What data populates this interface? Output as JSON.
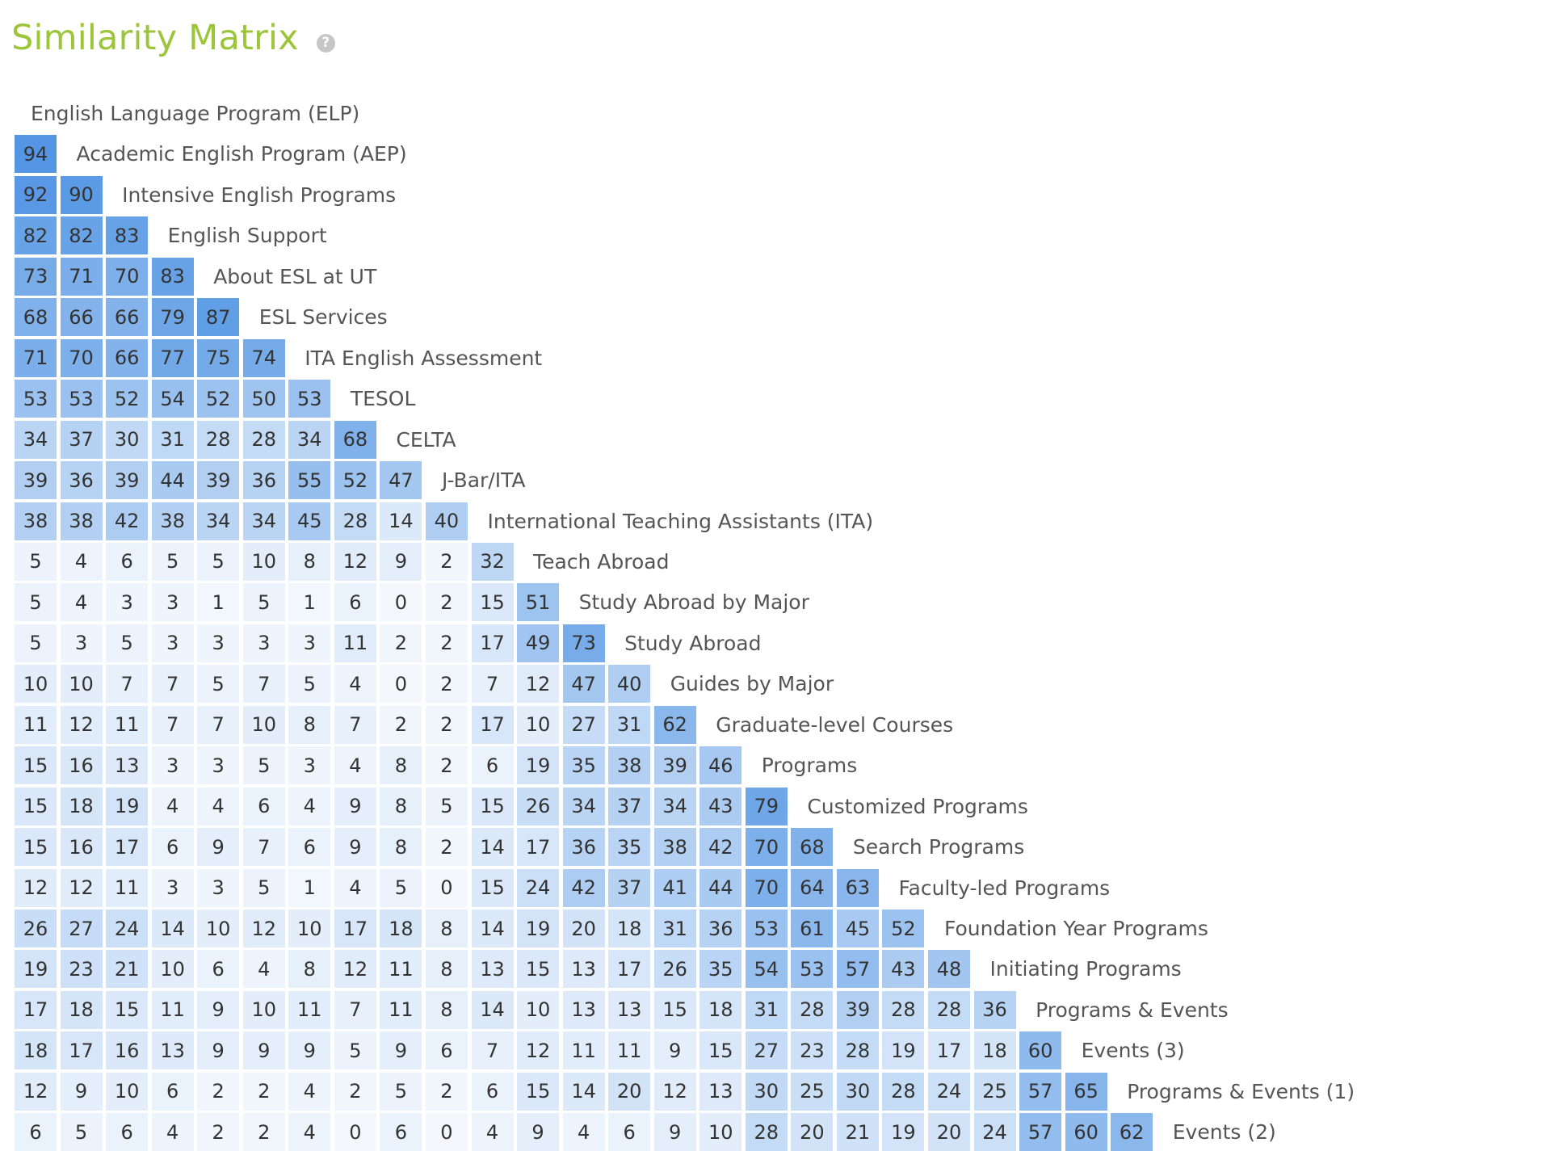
{
  "header": {
    "title": "Similarity Matrix",
    "help_icon": "question-circle-icon"
  },
  "colors": {
    "title": "#9bc63a",
    "cell_low": "#f4f8fd",
    "cell_high": "#4a90e2"
  },
  "matrix": {
    "labels": [
      "English Language Program (ELP)",
      "Academic English Program (AEP)",
      "Intensive English Programs",
      "English Support",
      "About ESL at UT",
      "ESL Services",
      "ITA English Assessment",
      "TESOL",
      "CELTA",
      "J-Bar/ITA",
      "International Teaching Assistants (ITA)",
      "Teach Abroad",
      "Study Abroad by Major",
      "Study Abroad",
      "Guides by Major",
      "Graduate-level Courses",
      "Programs",
      "Customized Programs",
      "Search Programs",
      "Faculty-led Programs",
      "Foundation Year Programs",
      "Initiating Programs",
      "Programs & Events",
      "Events (3)",
      "Programs & Events (1)",
      "Events (2)"
    ],
    "rows": [
      [],
      [
        94
      ],
      [
        92,
        90
      ],
      [
        82,
        82,
        83
      ],
      [
        73,
        71,
        70,
        83
      ],
      [
        68,
        66,
        66,
        79,
        87
      ],
      [
        71,
        70,
        66,
        77,
        75,
        74
      ],
      [
        53,
        53,
        52,
        54,
        52,
        50,
        53
      ],
      [
        34,
        37,
        30,
        31,
        28,
        28,
        34,
        68
      ],
      [
        39,
        36,
        39,
        44,
        39,
        36,
        55,
        52,
        47
      ],
      [
        38,
        38,
        42,
        38,
        34,
        34,
        45,
        28,
        14,
        40
      ],
      [
        5,
        4,
        6,
        5,
        5,
        10,
        8,
        12,
        9,
        2,
        32
      ],
      [
        5,
        4,
        3,
        3,
        1,
        5,
        1,
        6,
        0,
        2,
        15,
        51
      ],
      [
        5,
        3,
        5,
        3,
        3,
        3,
        3,
        11,
        2,
        2,
        17,
        49,
        73
      ],
      [
        10,
        10,
        7,
        7,
        5,
        7,
        5,
        4,
        0,
        2,
        7,
        12,
        47,
        40
      ],
      [
        11,
        12,
        11,
        7,
        7,
        10,
        8,
        7,
        2,
        2,
        17,
        10,
        27,
        31,
        62
      ],
      [
        15,
        16,
        13,
        3,
        3,
        5,
        3,
        4,
        8,
        2,
        6,
        19,
        35,
        38,
        39,
        46
      ],
      [
        15,
        18,
        19,
        4,
        4,
        6,
        4,
        9,
        8,
        5,
        15,
        26,
        34,
        37,
        34,
        43,
        79
      ],
      [
        15,
        16,
        17,
        6,
        9,
        7,
        6,
        9,
        8,
        2,
        14,
        17,
        36,
        35,
        38,
        42,
        70,
        68
      ],
      [
        12,
        12,
        11,
        3,
        3,
        5,
        1,
        4,
        5,
        0,
        15,
        24,
        42,
        37,
        41,
        44,
        70,
        64,
        63
      ],
      [
        26,
        27,
        24,
        14,
        10,
        12,
        10,
        17,
        18,
        8,
        14,
        19,
        20,
        18,
        31,
        36,
        53,
        61,
        45,
        52
      ],
      [
        19,
        23,
        21,
        10,
        6,
        4,
        8,
        12,
        11,
        8,
        13,
        15,
        13,
        17,
        26,
        35,
        54,
        53,
        57,
        43,
        48
      ],
      [
        17,
        18,
        15,
        11,
        9,
        10,
        11,
        7,
        11,
        8,
        14,
        10,
        13,
        13,
        15,
        18,
        31,
        28,
        39,
        28,
        28,
        36
      ],
      [
        18,
        17,
        16,
        13,
        9,
        9,
        9,
        5,
        9,
        6,
        7,
        12,
        11,
        11,
        9,
        15,
        27,
        23,
        28,
        19,
        17,
        18,
        60
      ],
      [
        12,
        9,
        10,
        6,
        2,
        2,
        4,
        2,
        5,
        2,
        6,
        15,
        14,
        20,
        12,
        13,
        30,
        25,
        30,
        28,
        24,
        25,
        57,
        65
      ],
      [
        6,
        5,
        6,
        4,
        2,
        2,
        4,
        0,
        6,
        0,
        4,
        9,
        4,
        6,
        9,
        10,
        28,
        20,
        21,
        19,
        20,
        24,
        57,
        60,
        62
      ]
    ]
  }
}
